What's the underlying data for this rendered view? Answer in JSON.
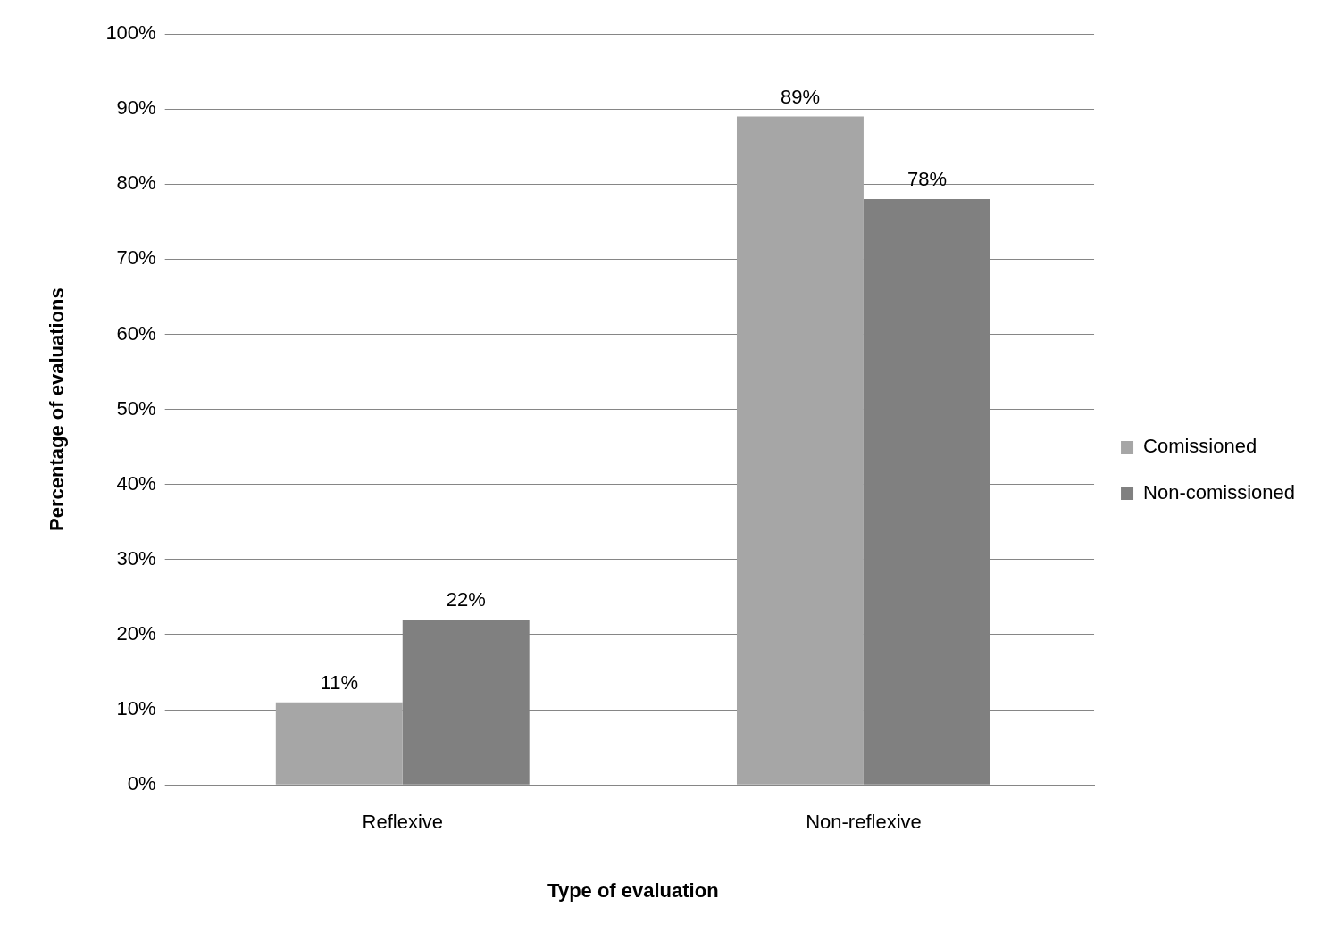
{
  "chart_data": {
    "type": "bar",
    "xlabel": "Type of evaluation",
    "ylabel": "Percentage of evaluations",
    "categories": [
      "Reflexive",
      "Non-reflexive"
    ],
    "series": [
      {
        "name": "Comissioned",
        "color": "#a6a6a6",
        "values": [
          11,
          89
        ]
      },
      {
        "name": "Non-comissioned",
        "color": "#808080",
        "values": [
          22,
          78
        ]
      }
    ],
    "ylim": [
      0,
      100
    ],
    "yticks": [
      {
        "value": 0,
        "label": "0%"
      },
      {
        "value": 10,
        "label": "10%"
      },
      {
        "value": 20,
        "label": "20%"
      },
      {
        "value": 30,
        "label": "30%"
      },
      {
        "value": 40,
        "label": "40%"
      },
      {
        "value": 50,
        "label": "50%"
      },
      {
        "value": 60,
        "label": "60%"
      },
      {
        "value": 70,
        "label": "70%"
      },
      {
        "value": 80,
        "label": "80%"
      },
      {
        "value": 90,
        "label": "90%"
      },
      {
        "value": 100,
        "label": "100%"
      }
    ],
    "value_labels": [
      [
        "11%",
        "89%"
      ],
      [
        "22%",
        "78%"
      ]
    ],
    "grid": "y",
    "legend": "right"
  }
}
